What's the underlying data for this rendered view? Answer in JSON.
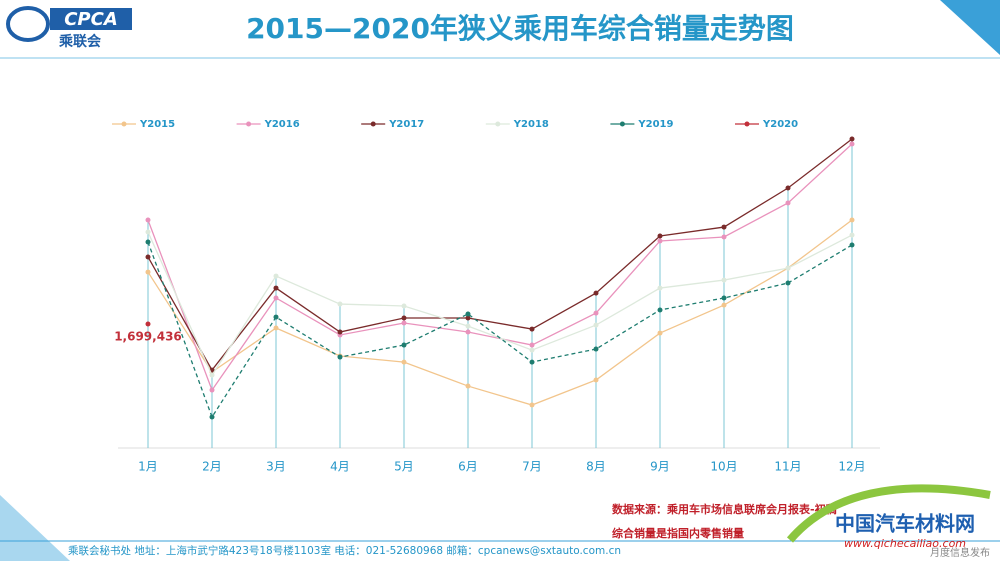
{
  "header": {
    "title": "2015—2020年狭义乘用车综合销量走势图",
    "logo": "CPCA",
    "logo_sub": "乘联会"
  },
  "notes": [
    "数据来源：乘用车市场信息联席会月报表-初稿",
    "综合销量是指国内零售销量"
  ],
  "footer": "乘联会秘书处   地址：上海市武宁路423号18号楼1103室   电话：021-52680968   邮箱：cpcanews@sxtauto.com.cn",
  "watermark": {
    "name": "中国汽车材料网",
    "url": "www.qichecailiao.com",
    "tag": "月度信息发布"
  },
  "chart_data": {
    "type": "line",
    "categories": [
      "1月",
      "2月",
      "3月",
      "4月",
      "5月",
      "6月",
      "7月",
      "8月",
      "9月",
      "10月",
      "11月",
      "12月"
    ],
    "series": [
      {
        "name": "Y2015",
        "color": "#f2c58c",
        "values": [
          2050000,
          1375000,
          1672000,
          1483000,
          1442000,
          1280000,
          1152000,
          1321000,
          1638000,
          1827000,
          2077000,
          2402000
        ]
      },
      {
        "name": "Y2016",
        "color": "#e992bc",
        "values": [
          2402000,
          1253000,
          1875000,
          1625000,
          1706000,
          1645000,
          1557000,
          1773000,
          2260000,
          2287000,
          2517000,
          2915000
        ]
      },
      {
        "name": "Y2017",
        "color": "#7a2b2b",
        "values": [
          2152000,
          1388000,
          1942000,
          1645000,
          1740000,
          1740000,
          1665000,
          1908000,
          2294000,
          2354000,
          2618000,
          2949000
        ]
      },
      {
        "name": "Y2018",
        "color": "#dde9dc",
        "values": [
          2321000,
          1354000,
          2023000,
          1834000,
          1821000,
          1685000,
          1523000,
          1692000,
          1942000,
          1996000,
          2077000,
          2300000
        ]
      },
      {
        "name": "Y2019",
        "color": "#1e7d70",
        "dashed": true,
        "values": [
          2253000,
          1071000,
          1746000,
          1476000,
          1557000,
          1767000,
          1442000,
          1530000,
          1794000,
          1875000,
          1976000,
          2233000
        ]
      },
      {
        "name": "Y2020",
        "color": "#c2303a",
        "values": [
          1699436,
          null,
          null,
          null,
          null,
          null,
          null,
          null,
          null,
          null,
          null,
          null
        ],
        "value_labels": [
          "1,699,436",
          null,
          null,
          null,
          null,
          null,
          null,
          null,
          null,
          null,
          null,
          null
        ]
      }
    ]
  }
}
